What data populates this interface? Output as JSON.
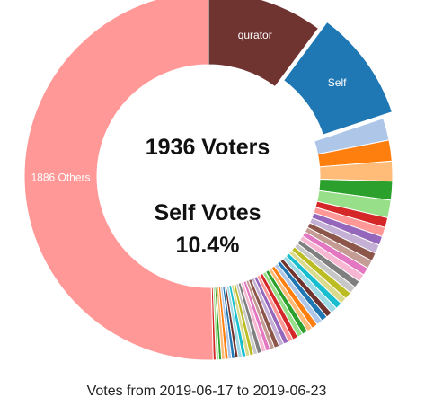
{
  "chart_data": {
    "type": "donut",
    "center_title": "1936 Voters",
    "center_subtitle_line1": "Self Votes",
    "center_subtitle_line2": "10.4%",
    "caption": "Votes from 2019-06-17 to 2019-06-23",
    "slices": [
      {
        "label": "qurator",
        "value": 210,
        "color": "#6f3330",
        "show_label": true,
        "exploded": false
      },
      {
        "label": "Self",
        "value": 201,
        "color": "#1f77b4",
        "show_label": true,
        "exploded": true
      },
      {
        "label": "",
        "value": 40,
        "color": "#aec7e8"
      },
      {
        "label": "",
        "value": 38,
        "color": "#ff7f0e"
      },
      {
        "label": "",
        "value": 36,
        "color": "#ffbb78"
      },
      {
        "label": "",
        "value": 34,
        "color": "#2ca02c"
      },
      {
        "label": "",
        "value": 32,
        "color": "#98df8a"
      },
      {
        "label": "",
        "value": 18,
        "color": "#d62728"
      },
      {
        "label": "",
        "value": 17,
        "color": "#ff9896"
      },
      {
        "label": "",
        "value": 16,
        "color": "#9467bd"
      },
      {
        "label": "",
        "value": 16,
        "color": "#c5b0d5"
      },
      {
        "label": "",
        "value": 15,
        "color": "#8c564b"
      },
      {
        "label": "",
        "value": 15,
        "color": "#c49c94"
      },
      {
        "label": "",
        "value": 14,
        "color": "#e377c2"
      },
      {
        "label": "",
        "value": 14,
        "color": "#f7b6d2"
      },
      {
        "label": "",
        "value": 13,
        "color": "#7f7f7f"
      },
      {
        "label": "",
        "value": 13,
        "color": "#c7c7c7"
      },
      {
        "label": "",
        "value": 13,
        "color": "#bcbd22"
      },
      {
        "label": "",
        "value": 12,
        "color": "#dbdb8d"
      },
      {
        "label": "",
        "value": 12,
        "color": "#17becf"
      },
      {
        "label": "",
        "value": 12,
        "color": "#9edae5"
      },
      {
        "label": "",
        "value": 11,
        "color": "#6f3330"
      },
      {
        "label": "",
        "value": 11,
        "color": "#1f77b4"
      },
      {
        "label": "",
        "value": 11,
        "color": "#aec7e8"
      },
      {
        "label": "",
        "value": 11,
        "color": "#ff7f0e"
      },
      {
        "label": "",
        "value": 10,
        "color": "#ffbb78"
      },
      {
        "label": "",
        "value": 10,
        "color": "#2ca02c"
      },
      {
        "label": "",
        "value": 10,
        "color": "#98df8a"
      },
      {
        "label": "",
        "value": 10,
        "color": "#d62728"
      },
      {
        "label": "",
        "value": 9,
        "color": "#ff9896"
      },
      {
        "label": "",
        "value": 9,
        "color": "#9467bd"
      },
      {
        "label": "",
        "value": 9,
        "color": "#c5b0d5"
      },
      {
        "label": "",
        "value": 9,
        "color": "#8c564b"
      },
      {
        "label": "",
        "value": 8,
        "color": "#c49c94"
      },
      {
        "label": "",
        "value": 8,
        "color": "#e377c2"
      },
      {
        "label": "",
        "value": 8,
        "color": "#f7b6d2"
      },
      {
        "label": "",
        "value": 8,
        "color": "#7f7f7f"
      },
      {
        "label": "",
        "value": 7,
        "color": "#c7c7c7"
      },
      {
        "label": "",
        "value": 7,
        "color": "#bcbd22"
      },
      {
        "label": "",
        "value": 7,
        "color": "#dbdb8d"
      },
      {
        "label": "",
        "value": 7,
        "color": "#17becf"
      },
      {
        "label": "",
        "value": 7,
        "color": "#9edae5"
      },
      {
        "label": "",
        "value": 6,
        "color": "#6f3330"
      },
      {
        "label": "",
        "value": 6,
        "color": "#1f77b4"
      },
      {
        "label": "",
        "value": 6,
        "color": "#aec7e8"
      },
      {
        "label": "",
        "value": 6,
        "color": "#ff7f0e"
      },
      {
        "label": "",
        "value": 6,
        "color": "#ffbb78"
      },
      {
        "label": "",
        "value": 5,
        "color": "#2ca02c"
      },
      {
        "label": "",
        "value": 5,
        "color": "#98df8a"
      },
      {
        "label": "",
        "value": 5,
        "color": "#d62728"
      },
      {
        "label": "1886 Others",
        "value": 1040,
        "color": "#ff9896",
        "show_label": true,
        "exploded": false
      }
    ]
  }
}
